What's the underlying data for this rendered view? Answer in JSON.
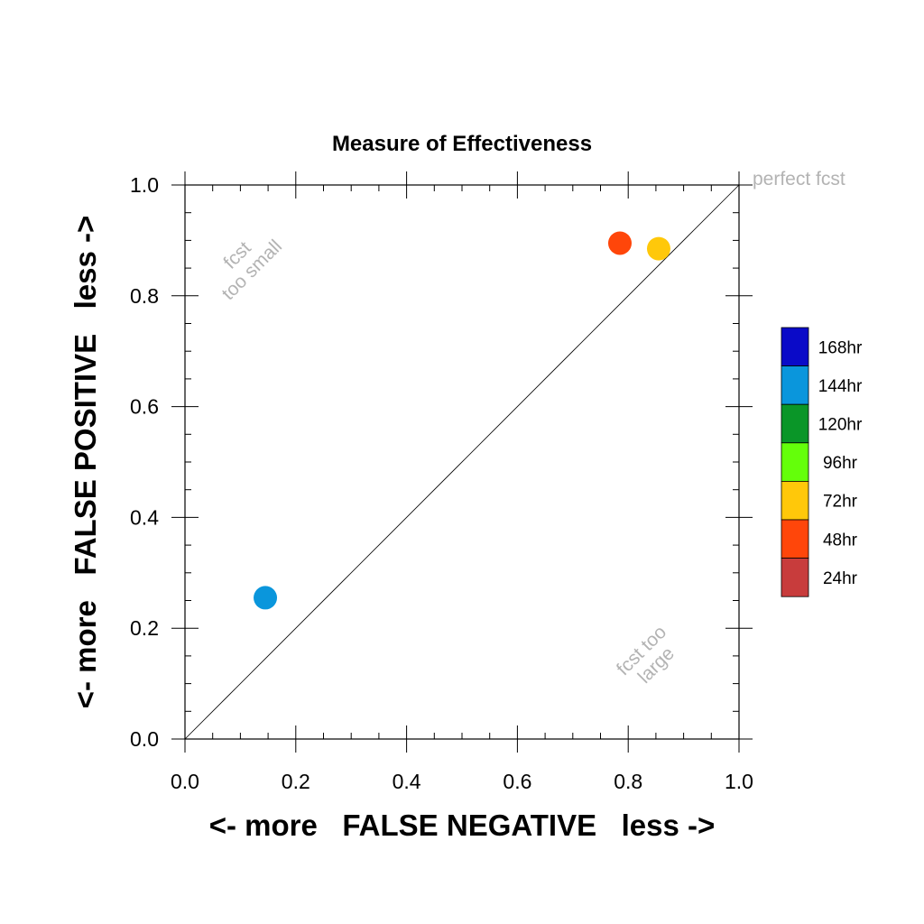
{
  "chart_data": {
    "type": "scatter",
    "title": "Measure of Effectiveness",
    "xlabel": "<- more   FALSE NEGATIVE   less ->",
    "ylabel": "<- more   FALSE POSITIVE   less ->",
    "xlim": [
      0.0,
      1.0
    ],
    "ylim": [
      0.0,
      1.0
    ],
    "xticks": [
      "0.0",
      "0.2",
      "0.4",
      "0.6",
      "0.8",
      "1.0"
    ],
    "yticks": [
      "0.0",
      "0.2",
      "0.4",
      "0.6",
      "0.8",
      "1.0"
    ],
    "grid": false,
    "reference_line": "diagonal",
    "annotations": {
      "perfect": "perfect fcst",
      "too_small": [
        "fcst",
        "too small"
      ],
      "too_large": [
        "fcst too",
        "large"
      ]
    },
    "legend": {
      "placement": "right",
      "entries": [
        {
          "label": "168hr",
          "color": "#0a0ac8"
        },
        {
          "label": "144hr",
          "color": "#0a96dc"
        },
        {
          "label": "120hr",
          "color": "#0a9628"
        },
        {
          "label": "96hr",
          "color": "#64ff0a"
        },
        {
          "label": "72hr",
          "color": "#ffc80a"
        },
        {
          "label": "48hr",
          "color": "#ff460a"
        },
        {
          "label": "24hr",
          "color": "#c83c3c"
        }
      ]
    },
    "points": [
      {
        "series": "144hr",
        "x": 0.145,
        "y": 0.255,
        "color": "#0a96dc"
      },
      {
        "series": "48hr",
        "x": 0.785,
        "y": 0.895,
        "color": "#ff460a"
      },
      {
        "series": "72hr",
        "x": 0.855,
        "y": 0.885,
        "color": "#ffc80a"
      }
    ]
  }
}
